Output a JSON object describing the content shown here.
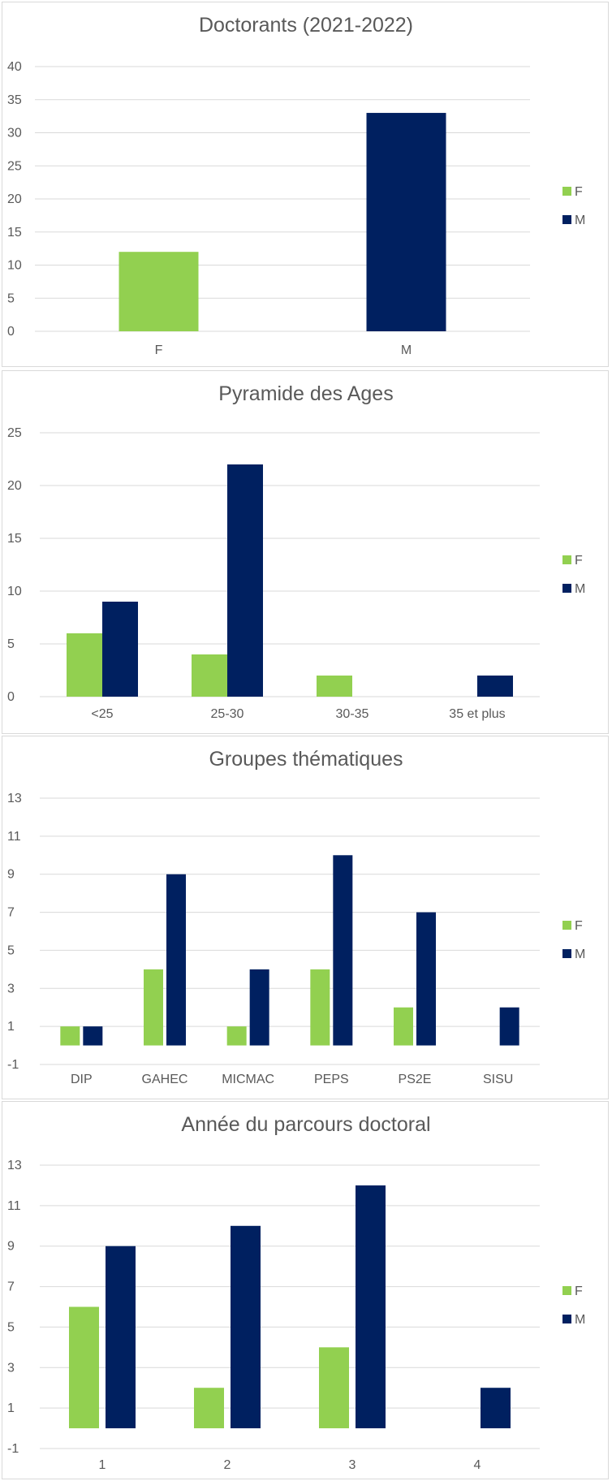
{
  "colors": {
    "F": "#92d050",
    "M": "#002060"
  },
  "chart_data": [
    {
      "type": "bar",
      "title": "Doctorants (2021-2022)",
      "categories": [
        "F",
        "M"
      ],
      "series": [
        {
          "name": "F",
          "values": [
            12,
            null
          ]
        },
        {
          "name": "M",
          "values": [
            null,
            33
          ]
        }
      ],
      "ylim": [
        0,
        40
      ],
      "yticks": [
        0,
        5,
        10,
        15,
        20,
        25,
        30,
        35,
        40
      ],
      "grid": true,
      "legend": "right"
    },
    {
      "type": "bar",
      "title": "Pyramide des Ages",
      "categories": [
        "<25",
        "25-30",
        "30-35",
        "35 et plus"
      ],
      "series": [
        {
          "name": "F",
          "values": [
            6,
            4,
            2,
            0
          ]
        },
        {
          "name": "M",
          "values": [
            9,
            22,
            0,
            2
          ]
        }
      ],
      "ylim": [
        0,
        25
      ],
      "yticks": [
        0,
        5,
        10,
        15,
        20,
        25
      ],
      "grid": true,
      "legend": "right"
    },
    {
      "type": "bar",
      "title": "Groupes thématiques",
      "categories": [
        "DIP",
        "GAHEC",
        "MICMAC",
        "PEPS",
        "PS2E",
        "SISU"
      ],
      "series": [
        {
          "name": "F",
          "values": [
            1,
            4,
            1,
            4,
            2,
            0
          ]
        },
        {
          "name": "M",
          "values": [
            1,
            9,
            4,
            10,
            7,
            2
          ]
        }
      ],
      "ylim": [
        -1,
        13
      ],
      "yticks": [
        -1,
        1,
        3,
        5,
        7,
        9,
        11,
        13
      ],
      "grid": true,
      "legend": "right"
    },
    {
      "type": "bar",
      "title": "Année du parcours doctoral",
      "categories": [
        "1",
        "2",
        "3",
        "4"
      ],
      "series": [
        {
          "name": "F",
          "values": [
            6,
            2,
            4,
            0
          ]
        },
        {
          "name": "M",
          "values": [
            9,
            10,
            12,
            2
          ]
        }
      ],
      "ylim": [
        -1,
        13
      ],
      "yticks": [
        -1,
        1,
        3,
        5,
        7,
        9,
        11,
        13
      ],
      "grid": true,
      "legend": "right"
    }
  ]
}
